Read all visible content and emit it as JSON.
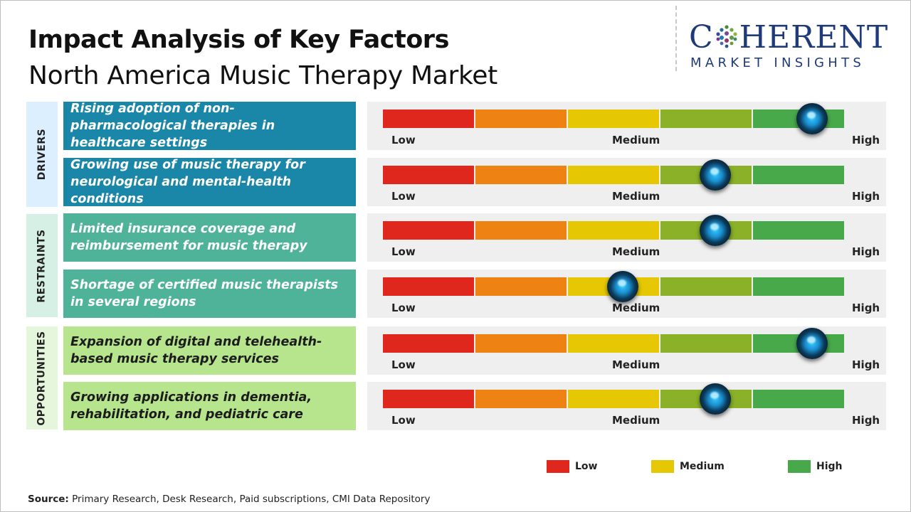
{
  "header": {
    "title": "Impact Analysis of Key Factors",
    "subtitle": "North America Music Therapy Market"
  },
  "logo": {
    "line1": "COHERENT",
    "line1_before_o": "C",
    "line1_after_o": "HERENT",
    "line2": "MARKET INSIGHTS"
  },
  "categories": {
    "drivers": "DRIVERS",
    "restraints": "RESTRAINTS",
    "opportunities": "OPPORTUNITIES"
  },
  "scale_labels": {
    "low": "Low",
    "medium": "Medium",
    "high": "High"
  },
  "colors": {
    "segments": [
      "#e0271e",
      "#ee8213",
      "#e5c703",
      "#8ab128",
      "#48a94b"
    ],
    "drivers": "#1a86a8",
    "restraints": "#4fb39a",
    "opportunities": "#b6e58d",
    "legend_low": "#e0271e",
    "legend_medium": "#e5c703",
    "legend_high": "#48a94b"
  },
  "chart_data": {
    "type": "gauge",
    "scale": [
      "Low",
      "Medium",
      "High"
    ],
    "value_range": [
      0,
      1
    ],
    "factors": [
      {
        "category": "DRIVERS",
        "label": "Rising adoption of non-pharmacological therapies in healthcare settings",
        "impact": 0.93
      },
      {
        "category": "DRIVERS",
        "label": "Growing use of music therapy for neurological and mental-health conditions",
        "impact": 0.72
      },
      {
        "category": "RESTRAINTS",
        "label": "Limited insurance coverage and reimbursement for music therapy",
        "impact": 0.72
      },
      {
        "category": "RESTRAINTS",
        "label": "Shortage of certified music therapists in several regions",
        "impact": 0.52
      },
      {
        "category": "OPPORTUNITIES",
        "label": "Expansion of digital and telehealth-based music therapy services",
        "impact": 0.93
      },
      {
        "category": "OPPORTUNITIES",
        "label": "Growing applications in dementia, rehabilitation, and pediatric care",
        "impact": 0.72
      }
    ],
    "legend": [
      "Low",
      "Medium",
      "High"
    ]
  },
  "source": {
    "label": "Source:",
    "text": "Primary Research, Desk Research, Paid subscriptions, CMI Data Repository"
  }
}
